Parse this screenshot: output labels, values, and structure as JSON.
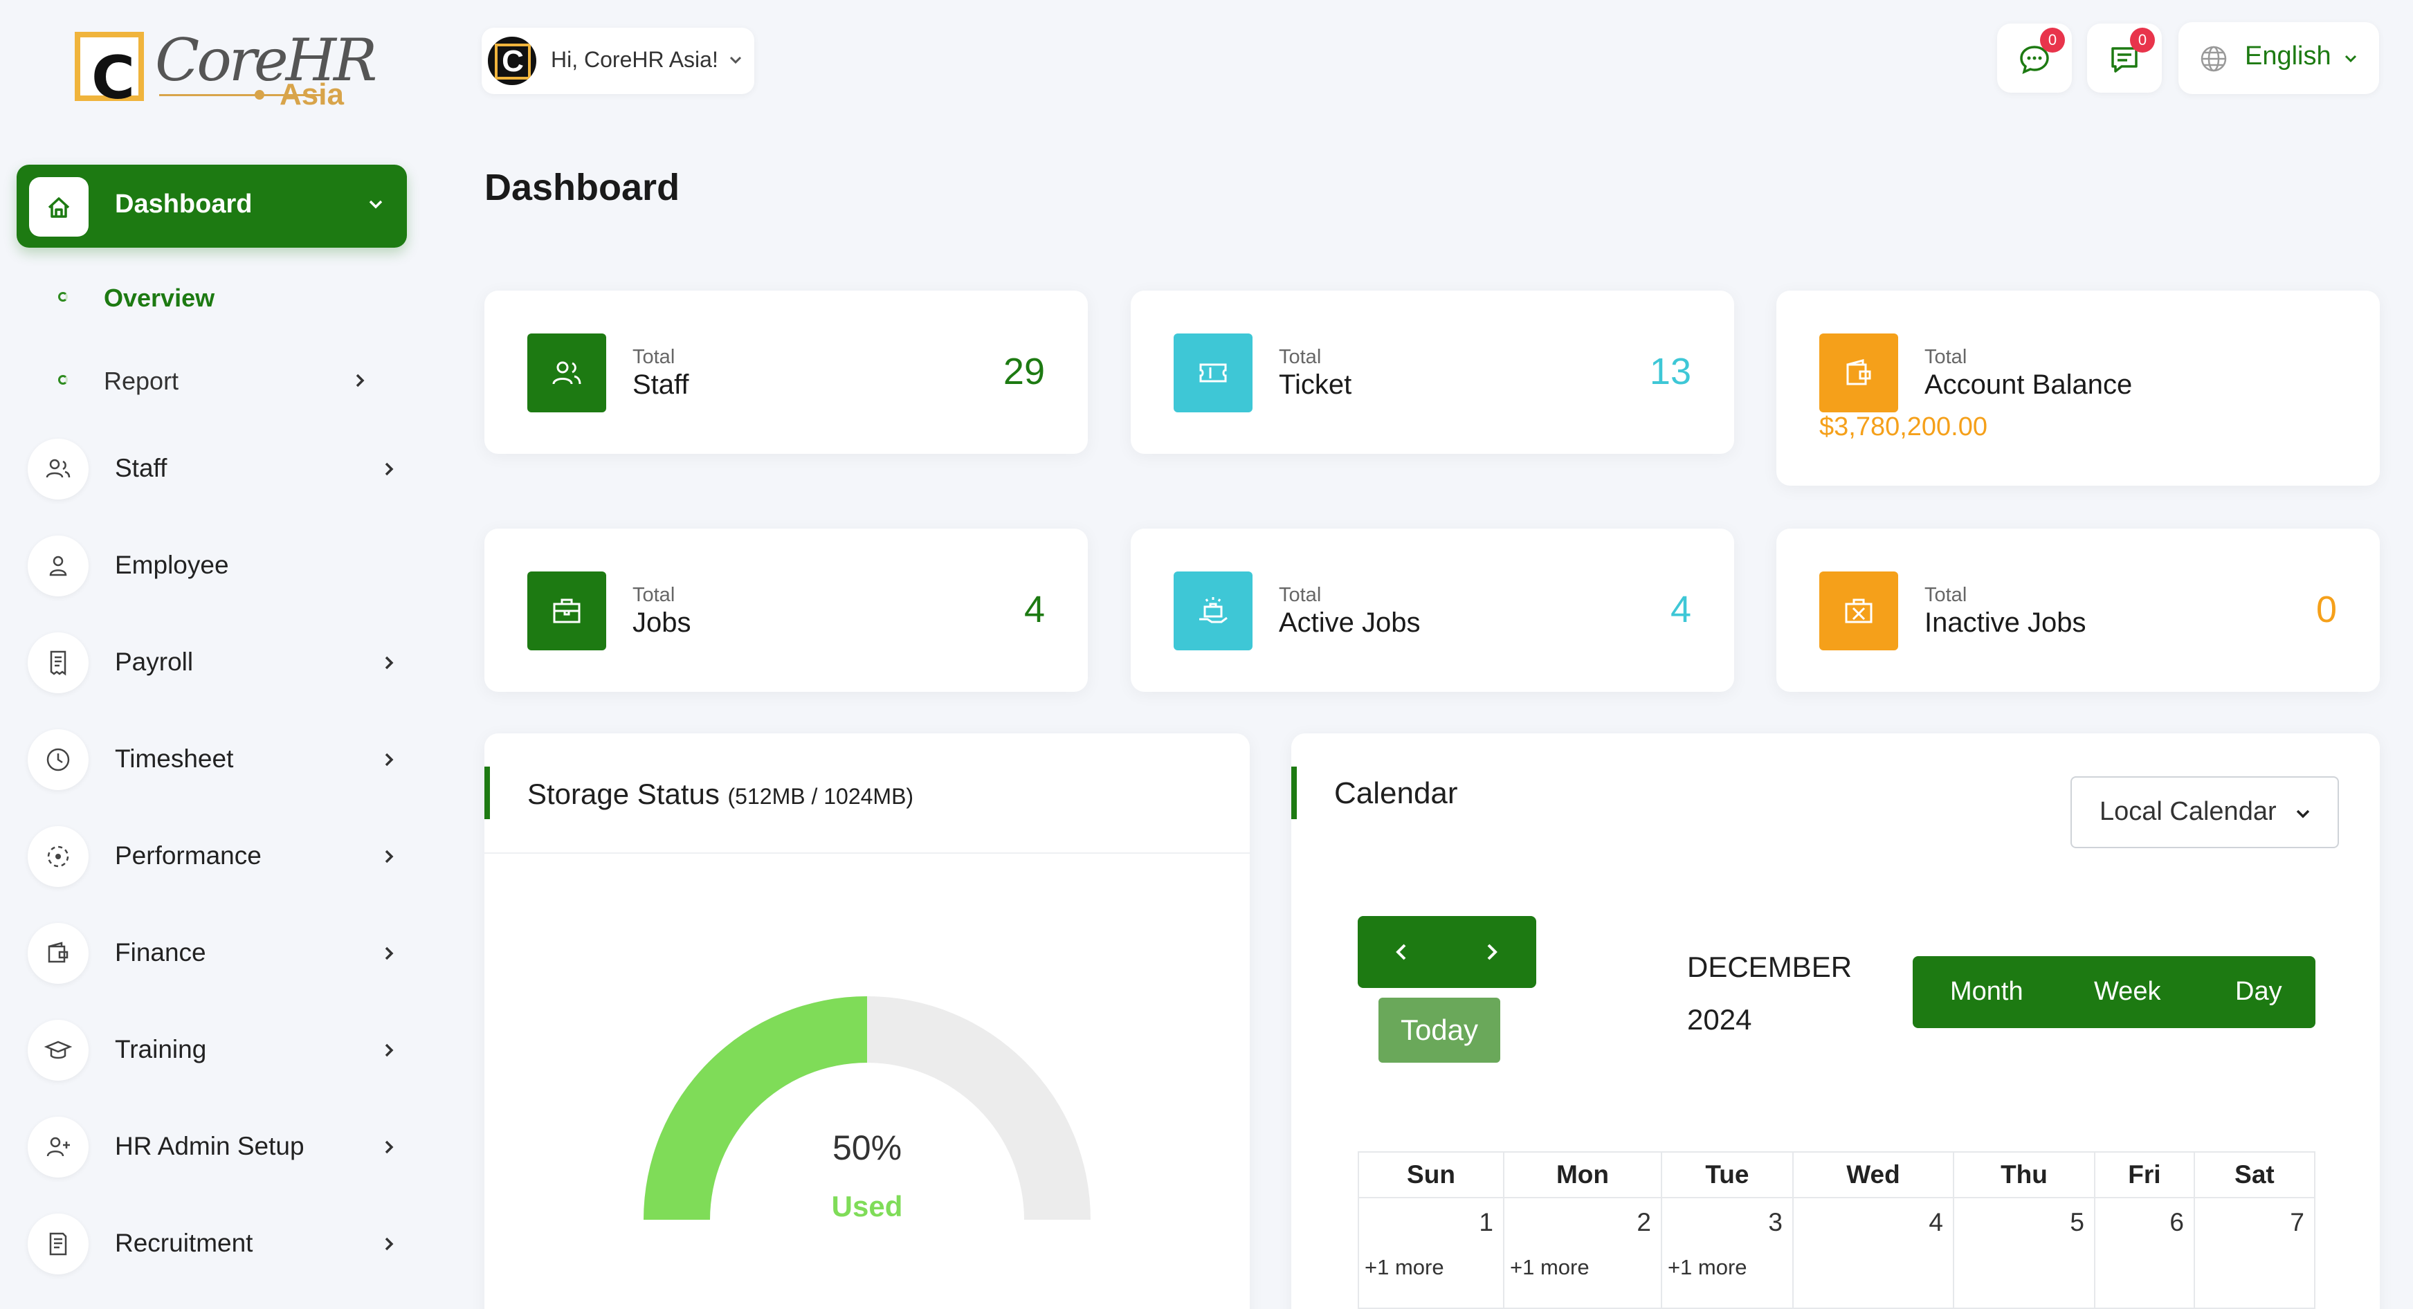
{
  "brand": {
    "logo_script": "CoreHR",
    "logo_sub": "Asia",
    "logo_letter": "C"
  },
  "sidebar": {
    "active": {
      "label": "Dashboard"
    },
    "sub_items": [
      {
        "label": "Overview"
      },
      {
        "label": "Report"
      }
    ],
    "items": [
      {
        "label": "Staff",
        "icon": "users-icon"
      },
      {
        "label": "Employee",
        "icon": "person-icon"
      },
      {
        "label": "Payroll",
        "icon": "receipt-icon"
      },
      {
        "label": "Timesheet",
        "icon": "clock-icon"
      },
      {
        "label": "Performance",
        "icon": "performance-icon"
      },
      {
        "label": "Finance",
        "icon": "wallet-icon"
      },
      {
        "label": "Training",
        "icon": "graduation-cap-icon"
      },
      {
        "label": "HR Admin Setup",
        "icon": "user-plus-icon"
      },
      {
        "label": "Recruitment",
        "icon": "document-icon"
      }
    ]
  },
  "topbar": {
    "user_greeting": "Hi, CoreHR Asia!",
    "chat_badge": "0",
    "message_badge": "0",
    "language": "English"
  },
  "page_title": "Dashboard",
  "stats": {
    "staff": {
      "small": "Total",
      "label": "Staff",
      "value": "29"
    },
    "ticket": {
      "small": "Total",
      "label": "Ticket",
      "value": "13"
    },
    "balance": {
      "small": "Total",
      "label": "Account Balance",
      "value": "$3,780,200.00"
    },
    "jobs": {
      "small": "Total",
      "label": "Jobs",
      "value": "4"
    },
    "active_jobs": {
      "small": "Total",
      "label": "Active Jobs",
      "value": "4"
    },
    "inactive_jobs": {
      "small": "Total",
      "label": "Inactive Jobs",
      "value": "0"
    }
  },
  "storage": {
    "title": "Storage Status",
    "usage": "(512MB / 1024MB)",
    "percent_label": "50%",
    "used_label": "Used",
    "used_fraction": 0.5
  },
  "calendar": {
    "title": "Calendar",
    "source": "Local Calendar",
    "today_label": "Today",
    "month": "DECEMBER",
    "year": "2024",
    "views": [
      "Month",
      "Week",
      "Day"
    ],
    "weekdays": [
      "Sun",
      "Mon",
      "Tue",
      "Wed",
      "Thu",
      "Fri",
      "Sat"
    ],
    "days": [
      {
        "day": "1",
        "more": "+1 more"
      },
      {
        "day": "2",
        "more": "+1 more"
      },
      {
        "day": "3",
        "more": "+1 more"
      },
      {
        "day": "4",
        "more": ""
      },
      {
        "day": "5",
        "more": ""
      },
      {
        "day": "6",
        "more": ""
      },
      {
        "day": "7",
        "more": ""
      }
    ]
  },
  "colors": {
    "brand_green": "#1d7a12",
    "teal": "#3ec7d6",
    "orange": "#f5a01a",
    "gauge_used": "#7fdc58",
    "gauge_free": "#ececec",
    "badge_red": "#e8344b"
  }
}
